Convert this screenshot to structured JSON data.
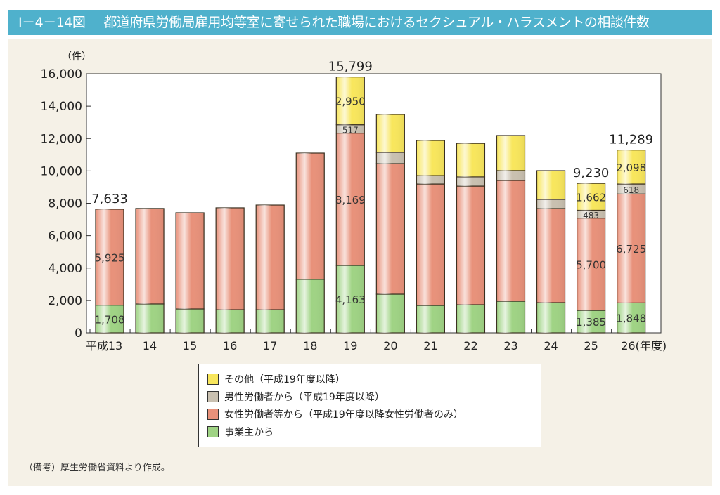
{
  "title": {
    "number": "Ⅰ－4－14図",
    "text": "都道府県労働局雇用均等室に寄せられた職場におけるセクシュアル・ハラスメントの相談件数"
  },
  "note": "（備考）厚生労働省資料より作成。",
  "chart_data": {
    "type": "bar",
    "stacked": true,
    "ylabel": "（件）",
    "xlabel_suffix": "(年度)",
    "ylim": [
      0,
      16000
    ],
    "yticks": [
      "0",
      "2,000",
      "4,000",
      "6,000",
      "8,000",
      "10,000",
      "12,000",
      "14,000",
      "16,000"
    ],
    "categories": [
      "平成13",
      "14",
      "15",
      "16",
      "17",
      "18",
      "19",
      "20",
      "21",
      "22",
      "23",
      "24",
      "25",
      "26"
    ],
    "series": [
      {
        "name": "事業主から",
        "color": "#9fd384",
        "values": [
          1708,
          1780,
          1475,
          1430,
          1430,
          3300,
          4163,
          2385,
          1690,
          1735,
          1950,
          1865,
          1385,
          1848
        ],
        "labels": [
          "1,708",
          null,
          null,
          null,
          null,
          null,
          "4,163",
          null,
          null,
          null,
          null,
          null,
          "1,385",
          "1,848"
        ]
      },
      {
        "name": "女性労働者等から（平成19年度以降女性労働者のみ）",
        "color": "#e8917a",
        "values": [
          5925,
          5900,
          5940,
          6290,
          6460,
          7800,
          8169,
          8065,
          7500,
          7325,
          7460,
          5810,
          5700,
          6725
        ],
        "labels": [
          "5,925",
          null,
          null,
          null,
          null,
          null,
          "8,169",
          null,
          null,
          null,
          null,
          null,
          "5,700",
          "6,725"
        ]
      },
      {
        "name": "男性労働者から（平成19年度以降）",
        "color": "#c9c0b0",
        "values": [
          0,
          0,
          0,
          0,
          0,
          0,
          517,
          695,
          520,
          570,
          610,
          565,
          483,
          618
        ],
        "labels": [
          null,
          null,
          null,
          null,
          null,
          null,
          "517",
          null,
          null,
          null,
          null,
          null,
          "483",
          "618"
        ]
      },
      {
        "name": "その他（平成19年度以降）",
        "color": "#f8e65c",
        "values": [
          0,
          0,
          0,
          0,
          0,
          0,
          2950,
          2340,
          2170,
          2070,
          2165,
          1775,
          1662,
          2098
        ],
        "labels": [
          null,
          null,
          null,
          null,
          null,
          null,
          "2,950",
          null,
          null,
          null,
          null,
          null,
          "1,662",
          "2,098"
        ]
      }
    ],
    "totals": [
      7633,
      null,
      null,
      null,
      null,
      null,
      15799,
      null,
      null,
      null,
      null,
      null,
      9230,
      11289
    ],
    "total_labels": [
      "7,633",
      null,
      null,
      null,
      null,
      null,
      "15,799",
      null,
      null,
      null,
      null,
      null,
      "9,230",
      "11,289"
    ],
    "legend_order": [
      3,
      2,
      1,
      0
    ],
    "legend_position": "bottom-center"
  }
}
